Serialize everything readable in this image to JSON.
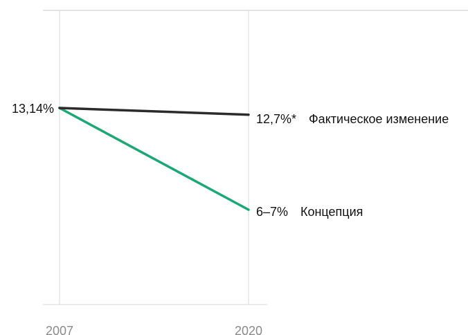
{
  "chart_data": {
    "type": "line",
    "x": [
      2007,
      2020
    ],
    "x_tick_labels": [
      "2007",
      "2020"
    ],
    "series": [
      {
        "name": "Фактическое изменение",
        "values": [
          13.14,
          12.7
        ],
        "color": "#2b2b2b",
        "start_label": "13,14%",
        "end_label": "12,7%*"
      },
      {
        "name": "Концепция",
        "values": [
          13.14,
          6.5
        ],
        "color": "#1aa874",
        "end_label": "6–7%"
      }
    ],
    "grid": true,
    "legend": "inline at line ends"
  }
}
